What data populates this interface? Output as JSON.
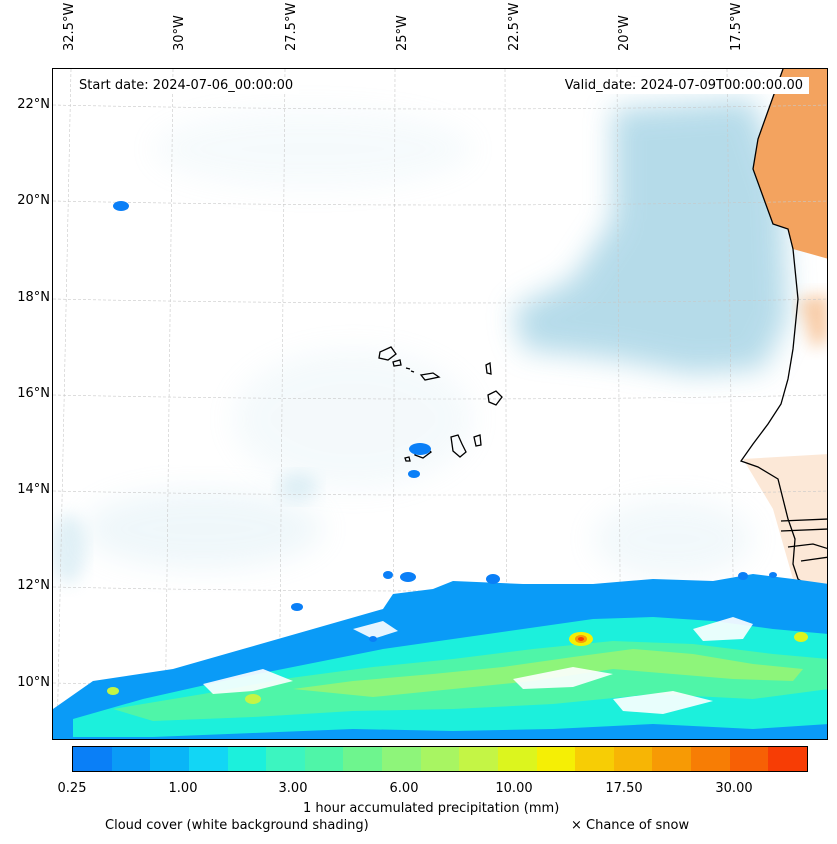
{
  "map": {
    "start_date": "Start date: 2024-07-06_00:00:00",
    "valid_date": "Valid_date: 2024-07-09T00:00:00.00",
    "lon_labels": [
      "32.5°W",
      "30°W",
      "27.5°W",
      "25°W",
      "22.5°W",
      "20°W",
      "17.5°W"
    ],
    "lat_labels": [
      "22°N",
      "20°N",
      "18°N",
      "16°N",
      "14°N",
      "12°N",
      "10°N"
    ],
    "extent": {
      "lon_min": -33.2,
      "lon_max": -15.8,
      "lat_min": 8.9,
      "lat_max": 22.8
    },
    "colors": {
      "land": "#f3a35f",
      "cloud": "#a9d5e6",
      "coastline": "#000000",
      "snow_marker": "#000000"
    }
  },
  "colorbar": {
    "label": "1 hour accumulated precipitation (mm)",
    "tick_labels": [
      "0.25",
      "1.00",
      "3.00",
      "6.00",
      "10.00",
      "17.50",
      "30.00"
    ],
    "colors": [
      "#0a7ff7",
      "#0a9bf7",
      "#0ab5f7",
      "#12d6f5",
      "#1cf0dc",
      "#3cf5c0",
      "#4ff5a8",
      "#6ef58e",
      "#8ef57a",
      "#a8f562",
      "#c4f545",
      "#dcf51e",
      "#f5ef05",
      "#f7cd05",
      "#f7b505",
      "#f79a05",
      "#f77d05",
      "#f76005",
      "#f73d05"
    ]
  },
  "legend": {
    "cloud_cover": "Cloud cover (white background shading)",
    "snow": "× Chance of snow"
  }
}
